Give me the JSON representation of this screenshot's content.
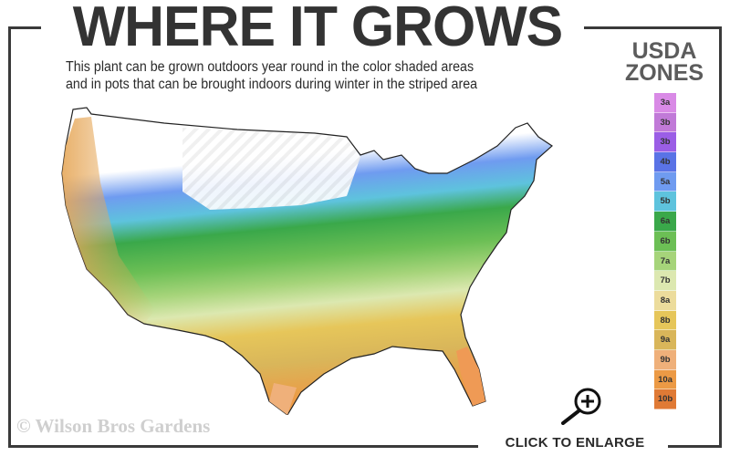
{
  "header": {
    "title": "WHERE IT GROWS",
    "subtitle_line1": "This plant can be grown outdoors year round in the color shaded areas",
    "subtitle_line2": "and in pots that can be brought indoors during winter in the striped area"
  },
  "legend": {
    "title_line1": "USDA",
    "title_line2": "ZONES",
    "zones": [
      {
        "label": "3a",
        "color": "#d98ae6"
      },
      {
        "label": "3b",
        "color": "#c17ad8"
      },
      {
        "label": "3b",
        "color": "#9b5ee6"
      },
      {
        "label": "4b",
        "color": "#5a73e6"
      },
      {
        "label": "5a",
        "color": "#6f9bf0"
      },
      {
        "label": "5b",
        "color": "#5ec3dd"
      },
      {
        "label": "6a",
        "color": "#3aa84a"
      },
      {
        "label": "6b",
        "color": "#6cbf55"
      },
      {
        "label": "7a",
        "color": "#a6d47a"
      },
      {
        "label": "7b",
        "color": "#dce8b0"
      },
      {
        "label": "8a",
        "color": "#ecdc9c"
      },
      {
        "label": "8b",
        "color": "#e6c65a"
      },
      {
        "label": "9a",
        "color": "#d9b65a"
      },
      {
        "label": "9b",
        "color": "#efb07a"
      },
      {
        "label": "10a",
        "color": "#ec9a45"
      },
      {
        "label": "10b",
        "color": "#e07a35"
      }
    ]
  },
  "footer": {
    "watermark": "© Wilson Bros Gardens",
    "enlarge_label": "CLICK TO ENLARGE",
    "enlarge_icon": "magnifier-plus-icon"
  },
  "colors": {
    "frame": "#3a3a3a",
    "title": "#333333",
    "legend_title": "#5c5c5c"
  }
}
